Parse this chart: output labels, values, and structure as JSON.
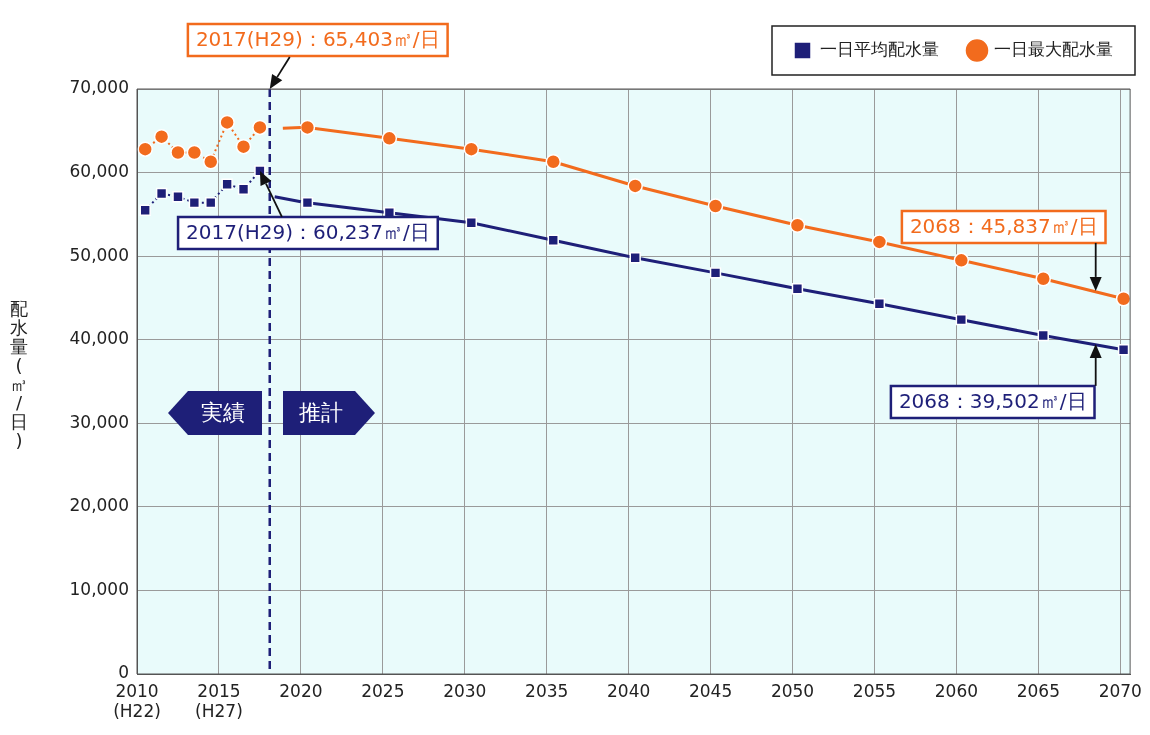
{
  "chart_data": {
    "type": "line",
    "ylabel": "配水量(㎥/日)",
    "xlim": [
      2010,
      2070.6
    ],
    "xticks": [
      {
        "value": 2010,
        "label": "2010\n(H22)"
      },
      {
        "value": 2015,
        "label": "2015\n(H27)"
      },
      2020,
      2025,
      2030,
      2035,
      2040,
      2045,
      2050,
      2055,
      2060,
      2065,
      2070
    ],
    "ylim": [
      0,
      70000
    ],
    "yticks": [
      0,
      {
        "value": 10000,
        "label": "10,000"
      },
      {
        "value": 20000,
        "label": "20,000"
      },
      {
        "value": 30000,
        "label": "30,000"
      },
      {
        "value": 40000,
        "label": "40,000"
      },
      {
        "value": 50000,
        "label": "50,000"
      },
      {
        "value": 60000,
        "label": "60,000"
      },
      {
        "value": 70000,
        "label": "70,000"
      }
    ],
    "grid": true,
    "legend": "top right",
    "series": [
      {
        "name": "一日平均配水量",
        "color": "#1e1f78",
        "marker": "square",
        "line_style": "dotted",
        "x": [
          2010.5,
          2011.5,
          2012.5,
          2013.5,
          2014.5,
          2015.5,
          2016.5,
          2017.5
        ],
        "values": [
          55500,
          57500,
          57100,
          56400,
          56400,
          58600,
          58000,
          60200
        ]
      },
      {
        "color": "#1e1f78",
        "marker": "none",
        "line_style": "solid",
        "x": [
          2018.4,
          2020.0
        ],
        "values": [
          57100,
          56500
        ]
      },
      {
        "color": "#1e1f78",
        "marker": "square",
        "line_style": "solid",
        "x": [
          2020.4,
          2025.4,
          2030.4,
          2035.4,
          2040.4,
          2045.3,
          2050.3,
          2055.3,
          2060.3,
          2065.3,
          2070.2
        ],
        "values": [
          56400,
          55200,
          54000,
          51900,
          49800,
          48000,
          46100,
          44300,
          42400,
          40500,
          38800
        ]
      },
      {
        "name": "一日最大配水量",
        "color": "#f26b1d",
        "marker": "circle",
        "line_style": "dotted",
        "x": [
          2010.5,
          2011.5,
          2012.5,
          2013.5,
          2014.5,
          2015.5,
          2016.5,
          2017.5
        ],
        "values": [
          62800,
          64300,
          62400,
          62400,
          61300,
          66000,
          63100,
          65400
        ]
      },
      {
        "color": "#f26b1d",
        "marker": "none",
        "line_style": "solid",
        "x": [
          2018.9,
          2020.0
        ],
        "values": [
          65300,
          65400
        ]
      },
      {
        "color": "#f26b1d",
        "marker": "circle",
        "line_style": "solid",
        "x": [
          2020.4,
          2025.4,
          2030.4,
          2035.4,
          2040.4,
          2045.3,
          2050.3,
          2055.3,
          2060.3,
          2065.3,
          2070.2
        ],
        "values": [
          65400,
          64100,
          62800,
          61300,
          58400,
          56000,
          53700,
          51700,
          49500,
          47300,
          44900
        ]
      }
    ],
    "ref_lines": [
      {
        "axis": "x",
        "value": 2018.1,
        "color": "#1e1f78",
        "line_style": "dashed"
      }
    ],
    "annotations": [
      {
        "text": "2017(H29)：65,403㎥/日",
        "x": 2018.1,
        "y": 70000
      },
      {
        "text": "2017(H29)：60,237㎥/日",
        "x": 2017.5,
        "y": 60200
      },
      {
        "text": "2068：45,837㎥/日",
        "x": 2068.5,
        "y": 45837
      },
      {
        "text": "2068：39,502㎥/日",
        "x": 2068.5,
        "y": 39502
      },
      "実績",
      "推計"
    ]
  }
}
